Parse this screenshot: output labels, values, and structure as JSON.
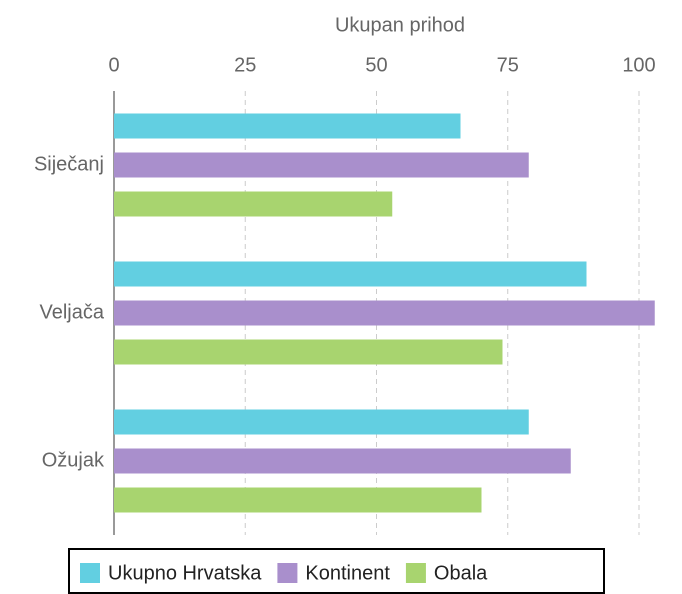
{
  "chart_data": {
    "type": "bar",
    "orientation": "horizontal",
    "x_label": "Ukupan prihod",
    "categories": [
      "Siječanj",
      "Veljača",
      "Ožujak"
    ],
    "series": [
      {
        "name": "Ukupno Hrvatska",
        "color": "#62cfe1",
        "values": [
          66,
          90,
          79
        ]
      },
      {
        "name": "Kontinent",
        "color": "#a98fcc",
        "values": [
          79,
          103,
          87
        ]
      },
      {
        "name": "Obala",
        "color": "#a8d46f",
        "values": [
          53,
          74,
          70
        ]
      }
    ],
    "xlim": [
      0,
      104
    ],
    "xticks": [
      0,
      25,
      50,
      75,
      100
    ],
    "grid": true,
    "legend": "bottom"
  }
}
